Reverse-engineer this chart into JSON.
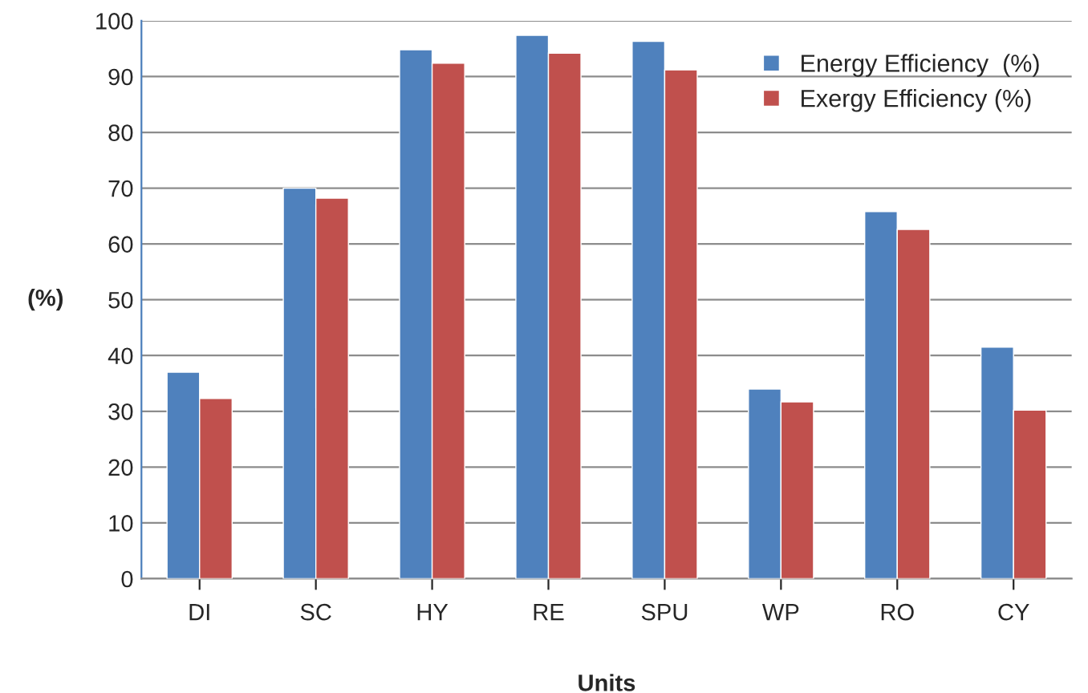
{
  "chart_data": {
    "type": "bar",
    "xlabel": "Units",
    "ylabel": "(%)",
    "categories": [
      "DI",
      "SC",
      "HY",
      "RE",
      "SPU",
      "WP",
      "RO",
      "CY"
    ],
    "series": [
      {
        "name": "Energy Efficiency  (%)",
        "color": "#4f81bd",
        "values": [
          37,
          70,
          94.8,
          97.4,
          96.3,
          34,
          65.8,
          41.5
        ]
      },
      {
        "name": "Exergy Efficiency (%)",
        "color": "#c0504d",
        "values": [
          32.3,
          68.2,
          92.4,
          94.2,
          91.2,
          31.7,
          62.6,
          30.2
        ]
      }
    ],
    "ylim": [
      0,
      100
    ],
    "yticks": [
      0,
      10,
      20,
      30,
      40,
      50,
      60,
      70,
      80,
      90,
      100
    ],
    "grid": "y",
    "legend": "top right"
  }
}
